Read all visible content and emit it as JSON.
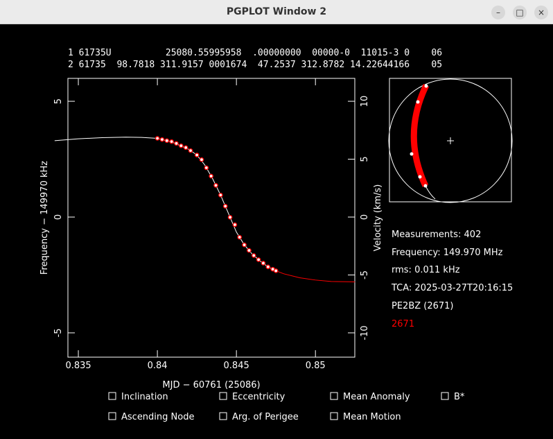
{
  "window": {
    "title": "PGPLOT Window 2"
  },
  "tle": [
    "1 61735U          25080.55995958  .00000000  00000-0  11015-3 0    06",
    "2 61735  98.7818 311.9157 0001674  47.2537 312.8782 14.22644166    05"
  ],
  "info": [
    "Measurements: 402",
    "Frequency: 149.970 MHz",
    "rms: 0.011 kHz",
    "TCA: 2025-03-27T20:16:15",
    "PE2BZ (2671)",
    "2671"
  ],
  "checkboxes": [
    "Inclination",
    "Eccentricity",
    "Mean Anomaly",
    "B*",
    "Ascending Node",
    "Arg. of Perigee",
    "Mean Motion"
  ],
  "chart_data": {
    "type": "line",
    "x_label": "MJD − 60761 (25086)",
    "y_label": "Frequency − 149970 kHz",
    "y2_label": "Velocity (km/s)",
    "xlim": [
      0.83434,
      0.85249
    ],
    "xticks": [
      0.835,
      0.84,
      0.845,
      0.85
    ],
    "ylim": [
      -6.05,
      5.99
    ],
    "yticks": [
      -5,
      0,
      5
    ],
    "y2lim": [
      -12.1,
      11.98
    ],
    "y2ticks": [
      -10,
      -5,
      0,
      5,
      10
    ],
    "x": [
      0.8335,
      0.835,
      0.8365,
      0.838,
      0.839,
      0.84,
      0.841,
      0.842,
      0.8425,
      0.843,
      0.8435,
      0.844,
      0.8445,
      0.845,
      0.8455,
      0.846,
      0.8465,
      0.847,
      0.8475,
      0.848,
      0.849,
      0.85,
      0.851,
      0.8525
    ],
    "series": [
      {
        "color": "#ffffff",
        "values": [
          3.3,
          3.38,
          3.43,
          3.45,
          3.44,
          3.4,
          3.22,
          2.92,
          2.68,
          2.25,
          1.65,
          0.95,
          0.15,
          -0.65,
          -1.2,
          -1.6,
          -1.9,
          -2.15,
          -2.32,
          null,
          null,
          null,
          null,
          null
        ]
      },
      {
        "color": "#ff0000",
        "values": [
          null,
          null,
          null,
          null,
          null,
          null,
          null,
          null,
          null,
          null,
          null,
          null,
          null,
          null,
          null,
          null,
          null,
          null,
          -2.32,
          -2.45,
          -2.62,
          -2.72,
          -2.78,
          -2.8
        ]
      }
    ],
    "measurements": {
      "color": "#ff0000",
      "x": [
        0.84,
        0.8403,
        0.8406,
        0.8409,
        0.8412,
        0.8415,
        0.8418,
        0.8421,
        0.8425,
        0.8428,
        0.8431,
        0.8434,
        0.8437,
        0.844,
        0.8443,
        0.8446,
        0.8449,
        0.8452,
        0.8455,
        0.8458,
        0.8461,
        0.8464,
        0.8467,
        0.847,
        0.8473,
        0.8475
      ],
      "values": [
        3.4,
        3.35,
        3.3,
        3.26,
        3.18,
        3.08,
        3.0,
        2.87,
        2.68,
        2.48,
        2.13,
        1.77,
        1.37,
        0.95,
        0.47,
        -0.01,
        -0.33,
        -0.87,
        -1.2,
        -1.44,
        -1.66,
        -1.84,
        -1.99,
        -2.15,
        -2.25,
        -2.32
      ]
    }
  }
}
